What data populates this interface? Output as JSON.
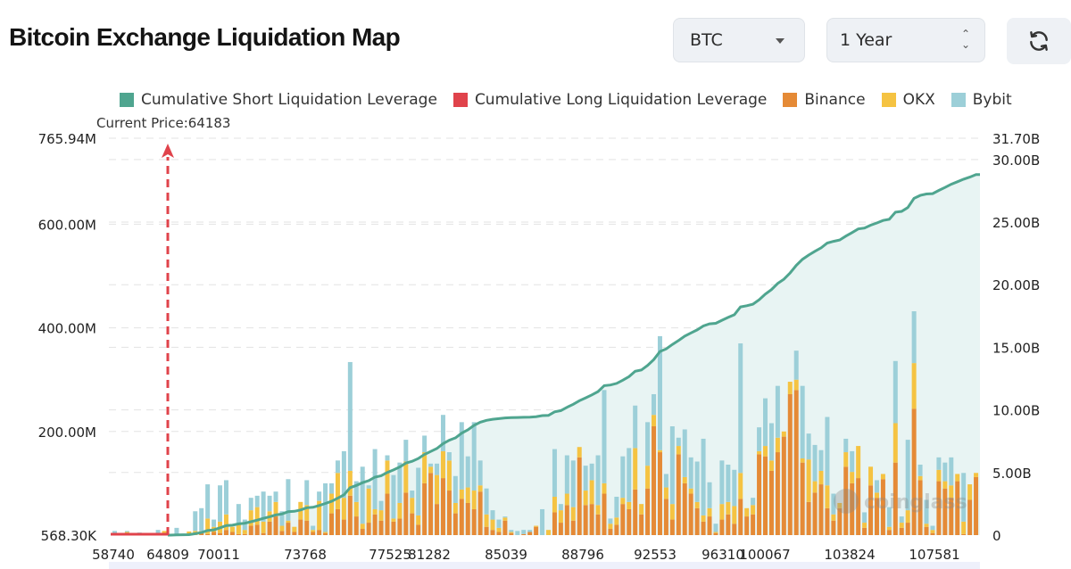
{
  "header": {
    "title": "Bitcoin Exchange Liquidation Map",
    "symbol_select": {
      "value": "BTC",
      "icon": "chevron-down-icon"
    },
    "range_select": {
      "value": "1 Year",
      "icon": "up-down-chevron-icon"
    },
    "refresh_button": {
      "icon": "refresh-icon"
    }
  },
  "colors": {
    "short_cum": "#4fa58f",
    "long_cum": "#e0434b",
    "binance": "#e58a36",
    "okx": "#f5c342",
    "bybit": "#9ccfd8",
    "area_fill": "#e8f4f3"
  },
  "chart_data": {
    "type": "bar",
    "title": "Bitcoin Exchange Liquidation Map",
    "legend": [
      {
        "name": "Cumulative Short Liquidation Leverage",
        "color": "#4fa58f"
      },
      {
        "name": "Cumulative Long Liquidation Leverage",
        "color": "#e0434b"
      },
      {
        "name": "Binance",
        "color": "#e58a36"
      },
      {
        "name": "OKX",
        "color": "#f5c342"
      },
      {
        "name": "Bybit",
        "color": "#9ccfd8"
      }
    ],
    "legend_position": "top",
    "current_price_label": "Current Price:64183",
    "current_price": 64183,
    "x_tick_labels": [
      "58740",
      "64809",
      "70011",
      "73768",
      "77525",
      "81282",
      "85039",
      "88796",
      "92553",
      "96310",
      "100067",
      "103824",
      "107581"
    ],
    "x_range": [
      58740,
      110700
    ],
    "y_left_tick_labels": [
      "765.94M",
      "600.00M",
      "400.00M",
      "200.00M",
      "568.30K"
    ],
    "y_left_range_millions": [
      0.5683,
      765.94
    ],
    "y_right_tick_labels": [
      "31.70B",
      "30.00B",
      "25.00B",
      "20.00B",
      "15.00B",
      "10.00B",
      "5.00B",
      "0"
    ],
    "y_right_range_billions": [
      0,
      31.7
    ],
    "grid": true,
    "watermark": "coinglass",
    "bars_note": "Stacked per price bin: [Binance, OKX, Bybit] in millions USD, approximated from the figure",
    "bars": [
      [
        0,
        0,
        8
      ],
      [
        0,
        0,
        0
      ],
      [
        0,
        6,
        2
      ],
      [
        0,
        0,
        0
      ],
      [
        0,
        0,
        5
      ],
      [
        0,
        0,
        0
      ],
      [
        0,
        0,
        0
      ],
      [
        0,
        0,
        10
      ],
      [
        0,
        8,
        0
      ],
      [
        0,
        0,
        0
      ],
      [
        0,
        0,
        14
      ],
      [
        0,
        2,
        0
      ],
      [
        2,
        5,
        0
      ],
      [
        0,
        8,
        38
      ],
      [
        4,
        4,
        44
      ],
      [
        2,
        30,
        66
      ],
      [
        6,
        10,
        14
      ],
      [
        4,
        22,
        70
      ],
      [
        10,
        30,
        66
      ],
      [
        6,
        10,
        0
      ],
      [
        2,
        18,
        40
      ],
      [
        2,
        8,
        20
      ],
      [
        18,
        30,
        24
      ],
      [
        20,
        34,
        22
      ],
      [
        4,
        22,
        58
      ],
      [
        26,
        20,
        30
      ],
      [
        36,
        28,
        20
      ],
      [
        8,
        10,
        28
      ],
      [
        24,
        4,
        80
      ],
      [
        6,
        10,
        0
      ],
      [
        30,
        34,
        0
      ],
      [
        28,
        30,
        48
      ],
      [
        6,
        4,
        8
      ],
      [
        10,
        56,
        18
      ],
      [
        4,
        2,
        94
      ],
      [
        42,
        38,
        20
      ],
      [
        50,
        70,
        24
      ],
      [
        30,
        42,
        90
      ],
      [
        76,
        48,
        210
      ],
      [
        36,
        28,
        40
      ],
      [
        12,
        10,
        110
      ],
      [
        24,
        66,
        6
      ],
      [
        40,
        10,
        116
      ],
      [
        28,
        20,
        18
      ],
      [
        80,
        64,
        10
      ],
      [
        26,
        6,
        84
      ],
      [
        32,
        30,
        78
      ],
      [
        82,
        60,
        42
      ],
      [
        42,
        30,
        14
      ],
      [
        20,
        18,
        92
      ],
      [
        100,
        60,
        32
      ],
      [
        120,
        12,
        6
      ],
      [
        60,
        56,
        22
      ],
      [
        110,
        52,
        70
      ],
      [
        86,
        58,
        16
      ],
      [
        42,
        20,
        52
      ],
      [
        70,
        18,
        130
      ],
      [
        62,
        30,
        60
      ],
      [
        50,
        36,
        132
      ],
      [
        84,
        12,
        48
      ],
      [
        16,
        24,
        50
      ],
      [
        10,
        20,
        18
      ],
      [
        6,
        8,
        16
      ],
      [
        28,
        6,
        2
      ],
      [
        4,
        2,
        4
      ],
      [
        0,
        0,
        8
      ],
      [
        2,
        0,
        8
      ],
      [
        6,
        0,
        4
      ],
      [
        16,
        2,
        0
      ],
      [
        0,
        0,
        50
      ],
      [
        0,
        10,
        0
      ],
      [
        44,
        30,
        92
      ],
      [
        24,
        24,
        12
      ],
      [
        58,
        22,
        74
      ],
      [
        28,
        26,
        90
      ],
      [
        150,
        20,
        0
      ],
      [
        58,
        28,
        48
      ],
      [
        60,
        46,
        32
      ],
      [
        40,
        18,
        96
      ],
      [
        80,
        20,
        180
      ],
      [
        12,
        10,
        10
      ],
      [
        20,
        14,
        40
      ],
      [
        60,
        12,
        80
      ],
      [
        50,
        14,
        104
      ],
      [
        88,
        80,
        82
      ],
      [
        40,
        20,
        0
      ],
      [
        90,
        44,
        84
      ],
      [
        210,
        22,
        40
      ],
      [
        160,
        4,
        220
      ],
      [
        70,
        22,
        26
      ],
      [
        30,
        30,
        150
      ],
      [
        156,
        16,
        16
      ],
      [
        100,
        12,
        92
      ],
      [
        80,
        10,
        60
      ],
      [
        52,
        12,
        78
      ],
      [
        26,
        12,
        148
      ],
      [
        36,
        16,
        50
      ],
      [
        4,
        2,
        16
      ],
      [
        30,
        30,
        84
      ],
      [
        40,
        24,
        72
      ],
      [
        22,
        34,
        70
      ],
      [
        70,
        50,
        250
      ],
      [
        36,
        16,
        0
      ],
      [
        40,
        18,
        14
      ],
      [
        156,
        6,
        46
      ],
      [
        152,
        20,
        92
      ],
      [
        124,
        20,
        72
      ],
      [
        160,
        28,
        100
      ],
      [
        190,
        10,
        0
      ],
      [
        272,
        24,
        0
      ],
      [
        280,
        20,
        56
      ],
      [
        140,
        8,
        140
      ],
      [
        64,
        82,
        50
      ],
      [
        82,
        22,
        70
      ],
      [
        98,
        26,
        40
      ],
      [
        52,
        44,
        132
      ],
      [
        28,
        12,
        40
      ],
      [
        52,
        10,
        0
      ],
      [
        132,
        28,
        26
      ],
      [
        100,
        22,
        40
      ],
      [
        110,
        62,
        0
      ],
      [
        14,
        10,
        20
      ],
      [
        96,
        36,
        0
      ],
      [
        72,
        10,
        24
      ],
      [
        108,
        10,
        0
      ],
      [
        10,
        6,
        38
      ],
      [
        140,
        76,
        120
      ],
      [
        14,
        10,
        12
      ],
      [
        24,
        24,
        136
      ],
      [
        244,
        88,
        100
      ],
      [
        106,
        8,
        22
      ],
      [
        16,
        6,
        46
      ],
      [
        4,
        6,
        8
      ],
      [
        104,
        22,
        24
      ],
      [
        90,
        14,
        36
      ],
      [
        72,
        24,
        54
      ],
      [
        104,
        14,
        0
      ],
      [
        2,
        24,
        94
      ],
      [
        68,
        30,
        0
      ],
      [
        112,
        8,
        0
      ]
    ],
    "cumulative_short_billions_note": "Cumulative short leverage rises from ~0 at 64809 to ~28.8B at ~110000",
    "cumulative_long_billions_note": "Cumulative long leverage near 0 from 58740 to current price"
  }
}
